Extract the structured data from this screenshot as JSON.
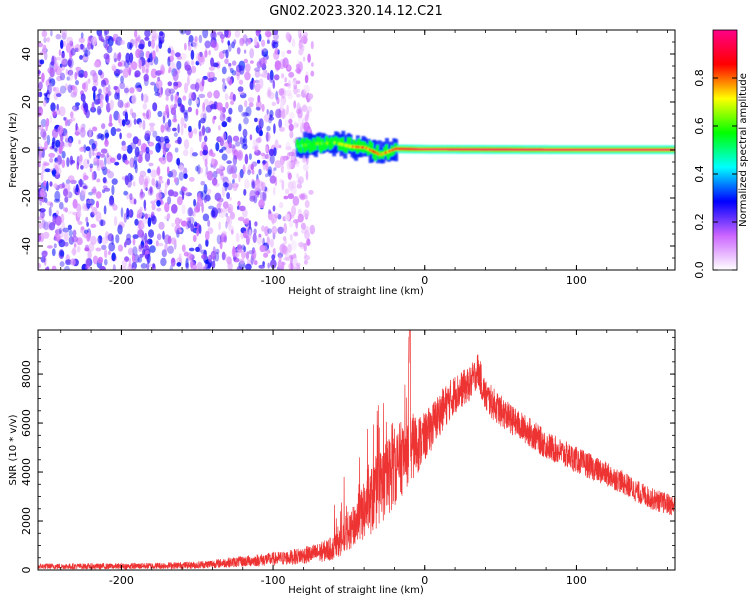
{
  "title": "GN02.2023.320.14.12.C21",
  "chart_data": [
    {
      "type": "heatmap",
      "xlabel": "Height of straight line (km)",
      "ylabel": "Frequency (Hz)",
      "xlim": [
        -255,
        165
      ],
      "ylim": [
        -50,
        50
      ],
      "x_ticks": [
        -200,
        -100,
        0,
        100
      ],
      "y_ticks": [
        -40,
        -20,
        0,
        20,
        40
      ],
      "colorbar": {
        "label": "Normalized spectral amplitude",
        "range": [
          0,
          1
        ],
        "ticks": [
          0.0,
          0.2,
          0.4,
          0.6,
          0.8
        ],
        "colors": [
          "#ffffff",
          "#cc66ff",
          "#0000ff",
          "#00ffff",
          "#00ff00",
          "#ffff00",
          "#ff0000",
          "#ff0088"
        ]
      },
      "noise_region": {
        "x_range": [
          -255,
          -80
        ],
        "freq_range": [
          -50,
          50
        ],
        "amplitude": [
          0.05,
          0.3
        ]
      },
      "signal_track": [
        {
          "x": -85,
          "freq": 1.5,
          "amplitude": 0.55
        },
        {
          "x": -75,
          "freq": 2.5,
          "amplitude": 0.6
        },
        {
          "x": -60,
          "freq": 3,
          "amplitude": 0.65
        },
        {
          "x": -50,
          "freq": 1.5,
          "amplitude": 0.8
        },
        {
          "x": -40,
          "freq": 1,
          "amplitude": 0.85
        },
        {
          "x": -30,
          "freq": -2,
          "amplitude": 0.75
        },
        {
          "x": -20,
          "freq": 0.5,
          "amplitude": 0.9
        },
        {
          "x": 0,
          "freq": 0.3,
          "amplitude": 0.95
        },
        {
          "x": 50,
          "freq": 0.2,
          "amplitude": 0.95
        },
        {
          "x": 100,
          "freq": 0.1,
          "amplitude": 0.95
        },
        {
          "x": 165,
          "freq": 0.1,
          "amplitude": 0.95
        }
      ]
    },
    {
      "type": "line",
      "xlabel": "Height of straight line (km)",
      "ylabel": "SNR (10 * v/v)",
      "xlim": [
        -255,
        165
      ],
      "ylim": [
        0,
        9800
      ],
      "x_ticks": [
        -200,
        -100,
        0,
        100
      ],
      "y_ticks": [
        0,
        2000,
        4000,
        6000,
        8000
      ],
      "series": [
        {
          "color": "#ee3333",
          "x": [
            -255,
            -200,
            -150,
            -130,
            -110,
            -90,
            -70,
            -60,
            -50,
            -40,
            -30,
            -20,
            -12,
            -10,
            0,
            10,
            20,
            30,
            35,
            40,
            50,
            60,
            70,
            80,
            90,
            100,
            110,
            120,
            130,
            140,
            150,
            160,
            165
          ],
          "y": [
            150,
            150,
            200,
            300,
            400,
            500,
            700,
            900,
            1500,
            2400,
            3300,
            4200,
            4800,
            9700,
            5400,
            6400,
            7200,
            7600,
            8200,
            7100,
            6500,
            6000,
            5600,
            5100,
            4800,
            4500,
            4200,
            3900,
            3600,
            3200,
            2900,
            2700,
            2600
          ],
          "noise_amp": [
            120,
            120,
            150,
            200,
            250,
            300,
            400,
            500,
            700,
            1200,
            1600,
            1600,
            1500,
            1500,
            1000,
            900,
            800,
            700,
            700,
            700,
            650,
            600,
            600,
            580,
            560,
            540,
            520,
            500,
            480,
            460,
            450,
            440,
            440
          ]
        }
      ]
    }
  ]
}
